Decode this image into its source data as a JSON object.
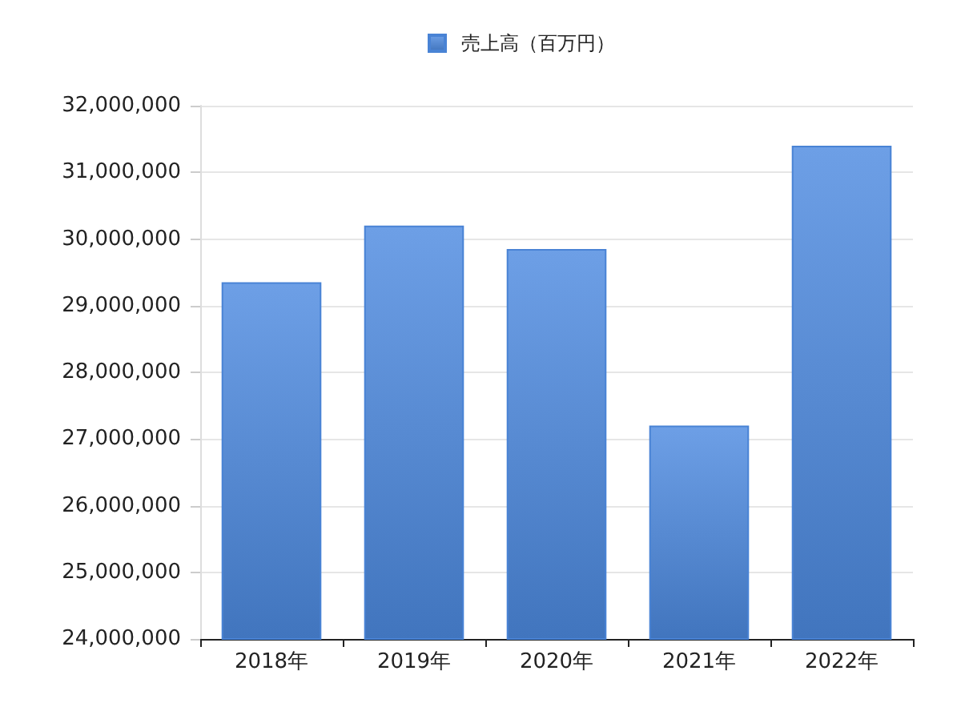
{
  "chart_data": {
    "type": "bar",
    "categories": [
      "2018年",
      "2019年",
      "2020年",
      "2021年",
      "2022年"
    ],
    "series": [
      {
        "name": "売上高（百万円）",
        "color": "#4d8ae0",
        "values": [
          29350000,
          30200000,
          29850000,
          27200000,
          31400000
        ]
      }
    ],
    "ylim": [
      24000000,
      32000000
    ],
    "yticks": [
      {
        "value": 24000000,
        "label": "24,000,000"
      },
      {
        "value": 25000000,
        "label": "25,000,000"
      },
      {
        "value": 26000000,
        "label": "26,000,000"
      },
      {
        "value": 27000000,
        "label": "27,000,000"
      },
      {
        "value": 28000000,
        "label": "28,000,000"
      },
      {
        "value": 29000000,
        "label": "29,000,000"
      },
      {
        "value": 30000000,
        "label": "30,000,000"
      },
      {
        "value": 31000000,
        "label": "31,000,000"
      },
      {
        "value": 32000000,
        "label": "32,000,000"
      }
    ],
    "grid": "y",
    "legend": "top"
  }
}
